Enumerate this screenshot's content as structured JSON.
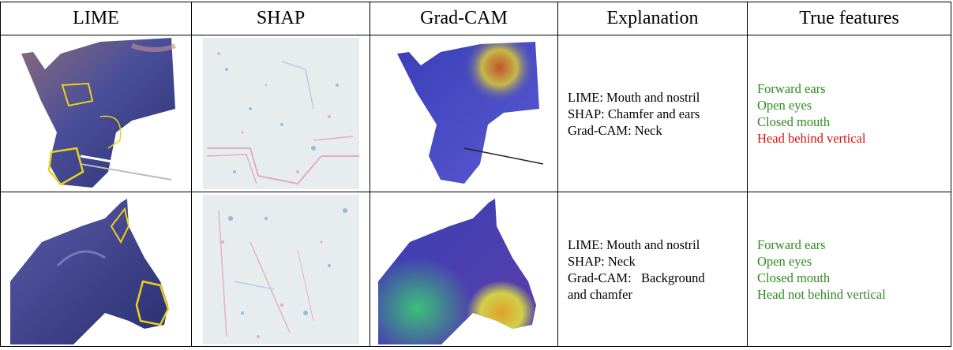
{
  "table": {
    "headers": [
      "LIME",
      "SHAP",
      "Grad-CAM",
      "Explanation",
      "True features"
    ],
    "rows": [
      {
        "explanation": [
          "LIME: Mouth and nostril",
          "SHAP: Chamfer and ears",
          "Grad-CAM: Neck"
        ],
        "features": [
          {
            "text": "Forward ears",
            "status": "correct"
          },
          {
            "text": "Open eyes",
            "status": "correct"
          },
          {
            "text": "Closed mouth",
            "status": "correct"
          },
          {
            "text": "Head behind vertical",
            "status": "incorrect"
          }
        ]
      },
      {
        "explanation": [
          "LIME: Mouth and nostril",
          "SHAP: Neck",
          "Grad-CAM:   Background",
          "and chamfer"
        ],
        "features": [
          {
            "text": "Forward ears",
            "status": "correct"
          },
          {
            "text": "Open eyes",
            "status": "correct"
          },
          {
            "text": "Closed mouth",
            "status": "correct"
          },
          {
            "text": "Head not behind vertical",
            "status": "correct"
          }
        ]
      }
    ]
  },
  "colors": {
    "correct": "#2e8b1f",
    "incorrect": "#e01010",
    "lime_outline": "#e8d21a",
    "horse_blue": "#4a4fb0"
  }
}
